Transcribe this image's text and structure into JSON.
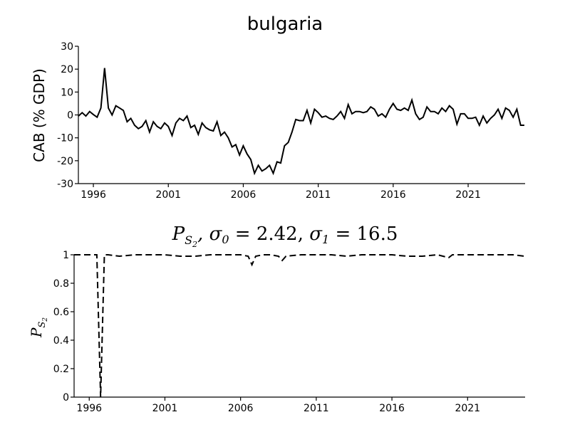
{
  "title": "bulgaria",
  "chart_data": [
    {
      "type": "line",
      "title": "",
      "xlabel": "",
      "ylabel": "CAB (% GDP)",
      "xlim": [
        1995.0,
        2024.8
      ],
      "ylim": [
        -30,
        30
      ],
      "xticks": [
        1996,
        2001,
        2006,
        2011,
        2016,
        2021
      ],
      "yticks": [
        -30,
        -20,
        -10,
        0,
        10,
        20,
        30
      ],
      "grid": false,
      "series": [
        {
          "color": "#000000",
          "linestyle": "solid",
          "x": [
            1995.0,
            1995.25,
            1995.5,
            1995.75,
            1996.0,
            1996.25,
            1996.5,
            1996.75,
            1997.0,
            1997.25,
            1997.5,
            1997.75,
            1998.0,
            1998.25,
            1998.5,
            1998.75,
            1999.0,
            1999.25,
            1999.5,
            1999.75,
            2000.0,
            2000.25,
            2000.5,
            2000.75,
            2001.0,
            2001.25,
            2001.5,
            2001.75,
            2002.0,
            2002.25,
            2002.5,
            2002.75,
            2003.0,
            2003.25,
            2003.5,
            2003.75,
            2004.0,
            2004.25,
            2004.5,
            2004.75,
            2005.0,
            2005.25,
            2005.5,
            2005.75,
            2006.0,
            2006.25,
            2006.5,
            2006.75,
            2007.0,
            2007.25,
            2007.5,
            2007.75,
            2008.0,
            2008.25,
            2008.5,
            2008.75,
            2009.0,
            2009.25,
            2009.5,
            2009.75,
            2010.0,
            2010.25,
            2010.5,
            2010.75,
            2011.0,
            2011.25,
            2011.5,
            2011.75,
            2012.0,
            2012.25,
            2012.5,
            2012.75,
            2013.0,
            2013.25,
            2013.5,
            2013.75,
            2014.0,
            2014.25,
            2014.5,
            2014.75,
            2015.0,
            2015.25,
            2015.5,
            2015.75,
            2016.0,
            2016.25,
            2016.5,
            2016.75,
            2017.0,
            2017.25,
            2017.5,
            2017.75,
            2018.0,
            2018.25,
            2018.5,
            2018.75,
            2019.0,
            2019.25,
            2019.5,
            2019.75,
            2020.0,
            2020.25,
            2020.5,
            2020.75,
            2021.0,
            2021.25,
            2021.5,
            2021.75,
            2022.0,
            2022.25,
            2022.5,
            2022.75,
            2023.0,
            2023.25,
            2023.5,
            2023.75,
            2024.0,
            2024.25,
            2024.5,
            2024.75
          ],
          "y": [
            -0.5,
            1.0,
            -0.5,
            1.5,
            0.2,
            -1.0,
            3.0,
            20.5,
            3.0,
            0.0,
            4.0,
            3.0,
            2.0,
            -3.0,
            -1.5,
            -4.5,
            -6.0,
            -5.0,
            -2.5,
            -7.5,
            -3.0,
            -5.0,
            -6.0,
            -3.5,
            -5.0,
            -9.0,
            -3.5,
            -1.5,
            -2.5,
            -0.5,
            -5.5,
            -4.5,
            -8.5,
            -3.5,
            -5.5,
            -6.5,
            -7.0,
            -3.0,
            -9.0,
            -7.5,
            -10.0,
            -14.0,
            -13.0,
            -17.5,
            -13.5,
            -17.0,
            -19.5,
            -25.5,
            -22.0,
            -24.5,
            -23.5,
            -22.0,
            -25.5,
            -20.5,
            -21.0,
            -13.5,
            -12.0,
            -7.5,
            -2.0,
            -2.5,
            -2.5,
            2.0,
            -3.5,
            2.5,
            1.0,
            -1.0,
            -0.5,
            -1.5,
            -2.0,
            -0.5,
            1.5,
            -1.5,
            4.5,
            0.5,
            1.5,
            1.5,
            1.0,
            1.5,
            3.5,
            2.5,
            -0.5,
            0.5,
            -1.0,
            2.5,
            5.0,
            2.5,
            2.0,
            3.0,
            2.0,
            6.5,
            0.5,
            -2.0,
            -1.0,
            3.5,
            1.5,
            1.5,
            0.5,
            3.0,
            1.5,
            4.0,
            2.5,
            -4.0,
            0.5,
            0.5,
            -1.5,
            -1.5,
            -1.0,
            -4.5,
            -0.5,
            -3.5,
            -1.5,
            0.0,
            2.5,
            -1.5,
            3.0,
            2.0,
            -1.0,
            2.5,
            -4.5,
            -4.5
          ]
        }
      ]
    },
    {
      "type": "line",
      "title": "P_{S_2}, σ_0 = 2.42, σ_1 = 16.5",
      "title_parts": {
        "p": "P",
        "s": "S",
        "s_sub": "2",
        "comma1": ", ",
        "sigma": "σ",
        "sub0": "0",
        "eq0": " = 2.42, ",
        "sub1": "1",
        "eq1": " = 16.5"
      },
      "ylabel_parts": {
        "p": "P",
        "s": "S",
        "s_sub": "2"
      },
      "xlabel": "",
      "xlim": [
        1995.0,
        2024.8
      ],
      "ylim": [
        0,
        1
      ],
      "xticks": [
        1996,
        2001,
        2006,
        2011,
        2016,
        2021
      ],
      "yticks": [
        0,
        0.2,
        0.4,
        0.6,
        0.8,
        1
      ],
      "ytick_labels": [
        "0",
        "0.2",
        "0.4",
        "0.6",
        "0.8",
        "1"
      ],
      "grid": false,
      "series": [
        {
          "color": "#000000",
          "linestyle": "dashed",
          "x": [
            1995.0,
            1996.5,
            1996.75,
            1997.0,
            1997.25,
            1998.0,
            1999.0,
            2000.0,
            2001.0,
            2002.0,
            2003.0,
            2004.0,
            2005.0,
            2006.0,
            2006.5,
            2006.75,
            2007.0,
            2007.5,
            2008.0,
            2008.5,
            2008.75,
            2009.0,
            2010.0,
            2011.0,
            2012.0,
            2013.0,
            2014.0,
            2015.0,
            2016.0,
            2017.0,
            2018.0,
            2019.0,
            2019.75,
            2020.0,
            2020.5,
            2021.0,
            2022.0,
            2023.0,
            2024.0,
            2024.75
          ],
          "y": [
            1.0,
            1.0,
            0.0,
            1.0,
            1.0,
            0.99,
            1.0,
            1.0,
            1.0,
            0.99,
            0.99,
            1.0,
            1.0,
            1.0,
            0.99,
            0.93,
            0.99,
            1.0,
            1.0,
            0.99,
            0.96,
            0.99,
            1.0,
            1.0,
            1.0,
            0.99,
            1.0,
            1.0,
            1.0,
            0.99,
            0.99,
            1.0,
            0.98,
            1.0,
            1.0,
            1.0,
            1.0,
            1.0,
            1.0,
            0.99
          ]
        }
      ]
    }
  ]
}
